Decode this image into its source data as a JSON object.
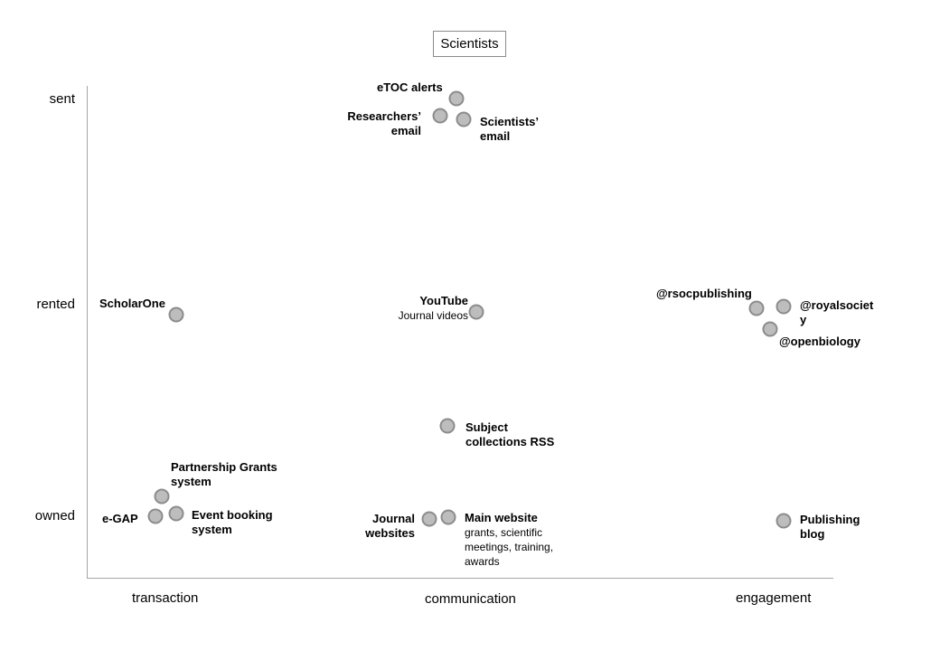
{
  "title": "Scientists",
  "y_axis": {
    "top": "sent",
    "middle": "rented",
    "bottom": "owned"
  },
  "x_axis": {
    "left": "transaction",
    "middle": "communication",
    "right": "engagement"
  },
  "nodes": {
    "etoc": {
      "name": "eTOC alerts"
    },
    "researchers_email": {
      "line1": "Researchers’",
      "line2": "email"
    },
    "scientists_email": {
      "line1": "Scientists’",
      "line2": "email"
    },
    "scholarone": {
      "name": "ScholarOne"
    },
    "youtube": {
      "name": "YouTube",
      "sub": "Journal videos"
    },
    "rsocpublishing": {
      "name": "@rsocpublishing"
    },
    "royalsociety": {
      "line1": "@royalsociet",
      "line2": "y"
    },
    "openbiology": {
      "name": "@openbiology"
    },
    "subject_rss": {
      "line1": "Subject",
      "line2": "collections RSS"
    },
    "partnership": {
      "line1": "Partnership Grants",
      "line2": "system"
    },
    "egap": {
      "name": "e-GAP"
    },
    "event_booking": {
      "line1": "Event booking",
      "line2": "system"
    },
    "journal_websites": {
      "line1": "Journal",
      "line2": "websites"
    },
    "main_website": {
      "name": "Main website",
      "sub1": "grants, scientific",
      "sub2": "meetings, training,",
      "sub3": "awards"
    },
    "publishing_blog": {
      "line1": "Publishing",
      "line2": "blog"
    }
  }
}
